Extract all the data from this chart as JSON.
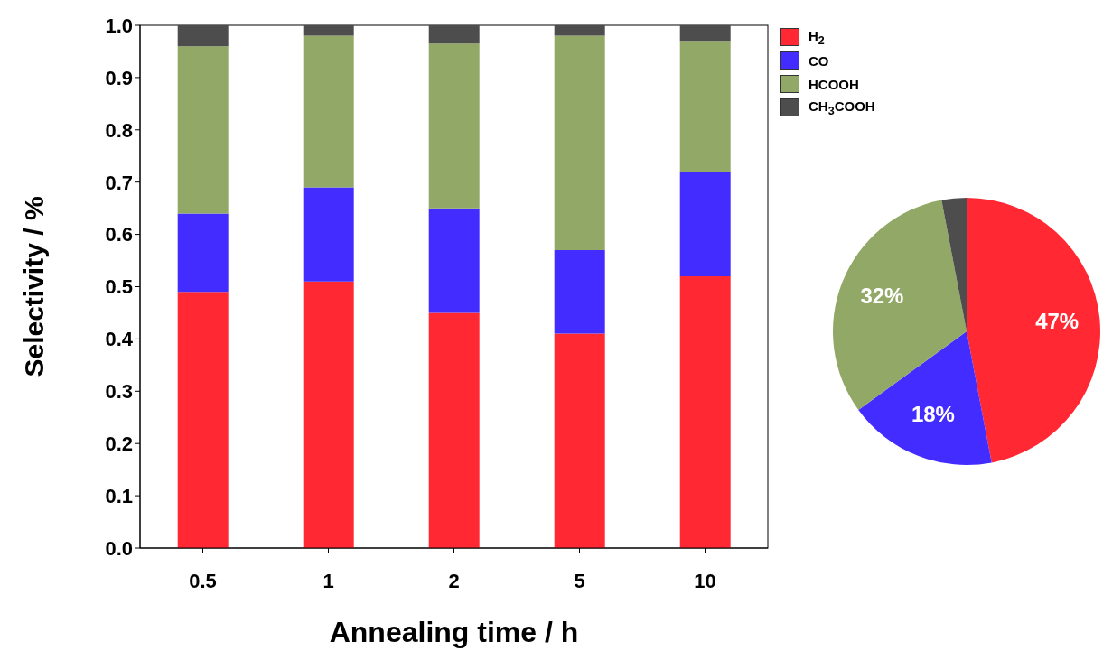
{
  "chart_data": [
    {
      "type": "bar",
      "stacked": true,
      "xlabel": "Annealing time / h",
      "ylabel": "Selectivity / %",
      "categories": [
        "0.5",
        "1",
        "2",
        "5",
        "10"
      ],
      "series": [
        {
          "name": "H$_{2}$",
          "color": "#ff2833",
          "values": [
            0.49,
            0.51,
            0.45,
            0.41,
            0.52
          ]
        },
        {
          "name": "CO",
          "color": "#432cff",
          "values": [
            0.15,
            0.18,
            0.2,
            0.16,
            0.2
          ]
        },
        {
          "name": "HCOOH",
          "color": "#91a866",
          "values": [
            0.32,
            0.29,
            0.315,
            0.41,
            0.25
          ]
        },
        {
          "name": "CH$_{3}$COOH",
          "color": "#4d4d4d",
          "values": [
            0.04,
            0.02,
            0.035,
            0.02,
            0.03
          ]
        }
      ],
      "ylim": [
        0,
        1
      ],
      "yticks": [
        {
          "value": 0,
          "label": "0.0"
        },
        {
          "value": 0.1,
          "label": "0.1"
        },
        {
          "value": 0.2,
          "label": "0.2"
        },
        {
          "value": 0.3,
          "label": "0.3"
        },
        {
          "value": 0.4,
          "label": "0.4"
        },
        {
          "value": 0.5,
          "label": "0.5"
        },
        {
          "value": 0.6,
          "label": "0.6"
        },
        {
          "value": 0.7,
          "label": "0.7"
        },
        {
          "value": 0.8,
          "label": "0.8"
        },
        {
          "value": 0.9,
          "label": "0.9"
        },
        {
          "value": 1,
          "label": "1.0"
        }
      ],
      "legend": "top right"
    },
    {
      "type": "pie",
      "categories": [
        null,
        null,
        null,
        null
      ],
      "values": [
        47,
        18,
        32,
        3
      ],
      "colors": [
        "#ff2833",
        "#432cff",
        "#91a866",
        "#4d4d4d"
      ],
      "value_labels": [
        "47%",
        "18%",
        "32%",
        null
      ]
    }
  ]
}
